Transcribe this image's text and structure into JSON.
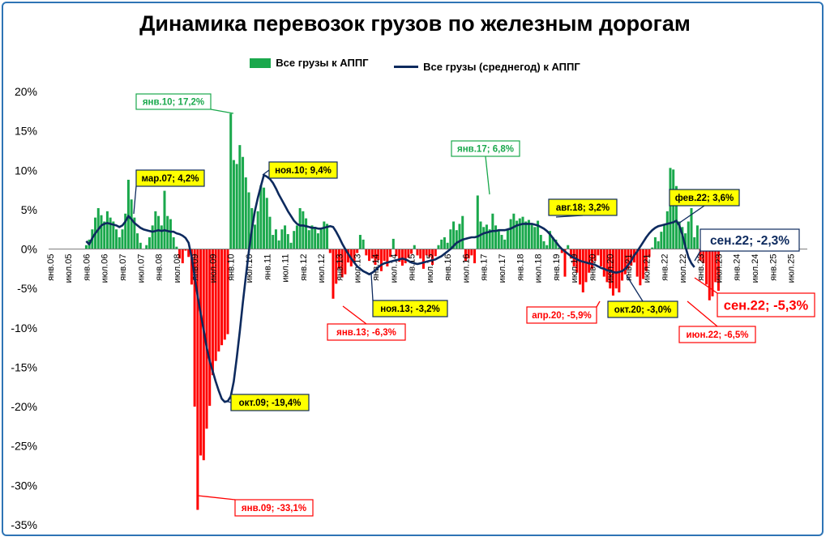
{
  "chart_data": {
    "type": "bar+line",
    "title": "Динамика перевозок грузов по железным дорогам",
    "legend": {
      "position": "top",
      "items": [
        {
          "name": "Все грузы к АППГ",
          "kind": "bar"
        },
        {
          "name": "Все грузы (среднегод) к АППГ",
          "kind": "line"
        }
      ]
    },
    "colors": {
      "positive": "#1aa84c",
      "negative": "#ff0000",
      "line": "#0d2a5e",
      "border": "#2e74b5"
    },
    "y_axis": {
      "min": -35,
      "max": 20,
      "step": 5,
      "tick_labels": [
        "20%",
        "15%",
        "10%",
        "5%",
        "0%",
        "-5%",
        "-10%",
        "-15%",
        "-20%",
        "-25%",
        "-30%",
        "-35%"
      ]
    },
    "x_axis": {
      "tick_labels": [
        "янв.05",
        "июл.05",
        "янв.06",
        "июл.06",
        "янв.07",
        "июл.07",
        "янв.08",
        "июл.08",
        "янв.09",
        "июл.09",
        "янв.10",
        "июл.10",
        "янв.11",
        "июл.11",
        "янв.12",
        "июл.12",
        "янв.13",
        "июл.13",
        "янв.14",
        "июл.14",
        "янв.15",
        "июл.15",
        "янв.16",
        "июл.16",
        "янв.17",
        "июл.17",
        "янв.18",
        "июл.18",
        "янв.19",
        "июл.19",
        "янв.20",
        "июл.20",
        "янв.21",
        "июл.21",
        "янв.22",
        "июл.22",
        "янв.23",
        "июл.23",
        "янв.24",
        "июл.24",
        "янв.25",
        "июл.25"
      ]
    },
    "grid": false,
    "series": [
      {
        "name": "Все грузы к АППГ",
        "type": "bar",
        "start": "янв.06",
        "values": [
          0.5,
          1.2,
          2.5,
          4.0,
          5.2,
          4.3,
          3.5,
          4.8,
          4.0,
          3.5,
          2.5,
          1.5,
          2.5,
          4.5,
          8.8,
          6.3,
          4.0,
          2.0,
          0.8,
          0.0,
          0.5,
          1.5,
          3.0,
          4.8,
          4.2,
          3.0,
          7.4,
          4.2,
          3.8,
          1.5,
          0.3,
          -1.2,
          -1.8,
          -0.2,
          -1.0,
          -4.5,
          -20.0,
          -33.1,
          -26.2,
          -26.8,
          -22.8,
          -19.9,
          -16.0,
          -14.2,
          -13.0,
          -12.2,
          -11.5,
          -10.8,
          17.2,
          11.3,
          10.8,
          13.2,
          11.7,
          9.1,
          7.2,
          5.2,
          3.1,
          4.8,
          8.1,
          7.8,
          6.5,
          4.1,
          1.8,
          2.5,
          1.1,
          2.5,
          3.0,
          1.9,
          0.8,
          2.3,
          3.0,
          5.2,
          4.8,
          3.9,
          2.4,
          3.0,
          2.8,
          2.0,
          2.5,
          3.5,
          3.2,
          -0.5,
          -6.3,
          -4.4,
          -2.5,
          -3.6,
          -3.2,
          -1.7,
          -2.2,
          -1.8,
          -0.5,
          1.8,
          1.2,
          -0.8,
          -1.5,
          -1.2,
          -2.0,
          -1.4,
          -2.8,
          -1.5,
          -2.2,
          -1.0,
          1.3,
          -0.9,
          -1.6,
          -2.1,
          -1.8,
          -1.1,
          -0.6,
          0.5,
          -0.8,
          -1.2,
          -2.5,
          -0.8,
          -1.0,
          -2.0,
          -0.9,
          0.5,
          1.2,
          1.5,
          0.8,
          2.5,
          3.5,
          2.4,
          3.2,
          4.2,
          -1.6,
          -1.2,
          -0.8,
          -1.8,
          6.8,
          3.5,
          2.8,
          3.1,
          2.5,
          4.5,
          3.0,
          2.5,
          1.8,
          1.2,
          2.5,
          3.8,
          4.5,
          3.6,
          3.9,
          4.1,
          3.5,
          3.7,
          3.2,
          2.8,
          3.6,
          1.8,
          1.0,
          0.5,
          2.3,
          1.5,
          1.2,
          0.2,
          -0.5,
          -3.5,
          0.5,
          -1.2,
          -2.2,
          -3.0,
          -4.5,
          -5.5,
          -4.2,
          -3.0,
          -2.5,
          -1.5,
          -0.8,
          -2.2,
          -3.5,
          -4.2,
          -5.0,
          -5.9,
          -5.0,
          -5.5,
          -4.0,
          -3.2,
          -2.5,
          -2.1,
          -1.7,
          -3.5,
          -4.6,
          -3.8,
          -2.8,
          -1.0,
          0.2,
          1.5,
          1.0,
          2.2,
          3.0,
          4.8,
          10.3,
          10.1,
          8.0,
          3.5,
          2.8,
          2.0,
          3.5,
          5.2,
          1.5,
          3.0,
          -1.5,
          -1.8,
          -4.5,
          -6.5,
          -6.0,
          -4.2,
          -5.3
        ]
      },
      {
        "name": "Все грузы (среднегод) к АППГ",
        "type": "line",
        "start": "янв.06",
        "values": [
          1.0,
          0.6,
          1.4,
          2.0,
          2.5,
          3.0,
          3.2,
          3.3,
          3.2,
          3.1,
          3.0,
          2.8,
          3.0,
          3.5,
          4.2,
          3.8,
          3.3,
          3.0,
          2.7,
          2.5,
          2.4,
          2.3,
          2.2,
          2.3,
          2.4,
          2.3,
          2.4,
          2.3,
          2.2,
          2.2,
          2.0,
          1.9,
          1.7,
          1.4,
          0.8,
          -1.0,
          -3.5,
          -6.0,
          -8.2,
          -10.3,
          -12.5,
          -14.2,
          -15.5,
          -16.8,
          -18.0,
          -19.0,
          -19.4,
          -19.3,
          -18.7,
          -16.8,
          -13.8,
          -10.4,
          -6.8,
          -3.5,
          -0.3,
          2.5,
          4.8,
          6.5,
          8.0,
          9.4,
          9.2,
          8.9,
          8.4,
          7.7,
          6.9,
          6.2,
          5.5,
          4.8,
          4.2,
          3.6,
          3.2,
          3.0,
          3.0,
          2.9,
          2.8,
          2.7,
          2.7,
          2.6,
          2.6,
          2.7,
          2.8,
          2.9,
          2.8,
          2.2,
          1.5,
          0.7,
          0.0,
          -0.6,
          -1.2,
          -1.7,
          -2.2,
          -2.5,
          -2.8,
          -3.0,
          -3.2,
          -3.0,
          -2.7,
          -2.3,
          -2.0,
          -1.8,
          -1.7,
          -1.6,
          -1.5,
          -1.4,
          -1.3,
          -1.2,
          -1.3,
          -1.5,
          -1.7,
          -1.8,
          -1.9,
          -1.8,
          -1.7,
          -1.6,
          -1.5,
          -1.4,
          -1.3,
          -1.1,
          -0.9,
          -0.6,
          -0.3,
          0.0,
          0.4,
          0.8,
          1.0,
          1.2,
          1.3,
          1.4,
          1.5,
          1.5,
          1.6,
          1.8,
          2.0,
          2.1,
          2.2,
          2.3,
          2.3,
          2.4,
          2.4,
          2.4,
          2.5,
          2.6,
          2.8,
          3.0,
          3.1,
          3.2,
          3.2,
          3.2,
          3.2,
          3.1,
          3.0,
          2.8,
          2.6,
          2.3,
          1.9,
          1.4,
          0.9,
          0.4,
          0.0,
          -0.3,
          -0.6,
          -0.9,
          -1.1,
          -1.3,
          -1.5,
          -1.6,
          -1.7,
          -1.8,
          -1.9,
          -2.0,
          -2.2,
          -2.4,
          -2.5,
          -2.7,
          -2.8,
          -2.9,
          -3.0,
          -2.9,
          -2.8,
          -2.5,
          -2.0,
          -1.5,
          -0.8,
          -0.3,
          0.3,
          0.9,
          1.5,
          2.0,
          2.4,
          2.7,
          2.9,
          3.0,
          3.1,
          3.2,
          3.3,
          3.4,
          3.6,
          3.0,
          1.8,
          0.3,
          -1.0,
          -1.8,
          -2.3
        ]
      }
    ],
    "annotations": [
      {
        "text": "мар.07; 4,2%",
        "style": "line"
      },
      {
        "text": "янв.10; 17,2%",
        "style": "green"
      },
      {
        "text": "ноя.10; 9,4%",
        "style": "line"
      },
      {
        "text": "окт.09; -19,4%",
        "style": "line"
      },
      {
        "text": "янв.09; -33,1%",
        "style": "red"
      },
      {
        "text": "янв.13; -6,3%",
        "style": "red"
      },
      {
        "text": "ноя.13; -3,2%",
        "style": "line"
      },
      {
        "text": "янв.17; 6,8%",
        "style": "green"
      },
      {
        "text": "авг.18; 3,2%",
        "style": "line"
      },
      {
        "text": "апр.20; -5,9%",
        "style": "red"
      },
      {
        "text": "окт.20; -3,0%",
        "style": "line"
      },
      {
        "text": "фев.22; 3,6%",
        "style": "line"
      },
      {
        "text": "июн.22; -6,5%",
        "style": "red"
      },
      {
        "text": "сен.22; -2,3%",
        "style": "line-big"
      },
      {
        "text": "сен.22; -5,3%",
        "style": "red-big"
      }
    ]
  }
}
